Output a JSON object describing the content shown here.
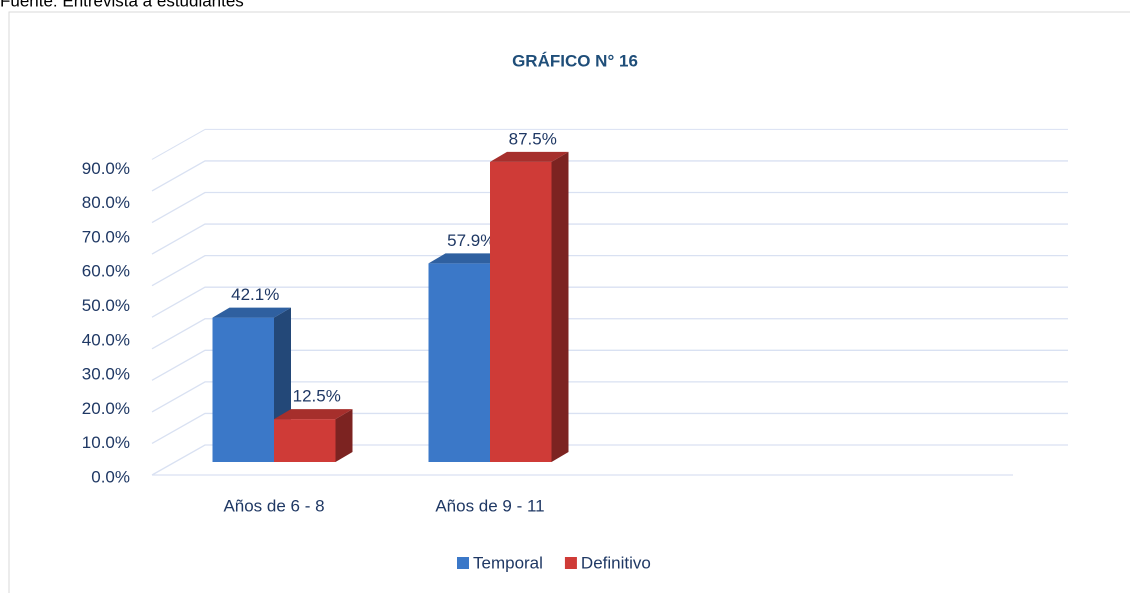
{
  "chart_data": {
    "type": "bar3d",
    "note": "Fuente: Entrevista a estudiantes",
    "title": "GRÁFICO N° 16",
    "categories": [
      "Años de 6 - 8",
      "Años de 9 - 11"
    ],
    "series": [
      {
        "name": "Temporal",
        "color": "#3b78c8",
        "values": [
          42.1,
          57.9
        ],
        "value_labels": [
          "42.1%",
          "57.9%"
        ]
      },
      {
        "name": "Definitivo",
        "color": "#cf3b37",
        "values": [
          12.5,
          87.5
        ],
        "value_labels": [
          "12.5%",
          "87.5%"
        ]
      }
    ],
    "ylim": [
      0,
      100
    ],
    "yticks": [
      {
        "value": 0,
        "label": "0.0%"
      },
      {
        "value": 10,
        "label": "10.0%"
      },
      {
        "value": 20,
        "label": "20.0%"
      },
      {
        "value": 30,
        "label": "30.0%"
      },
      {
        "value": 40,
        "label": "40.0%"
      },
      {
        "value": 50,
        "label": "50.0%"
      },
      {
        "value": 60,
        "label": "60.0%"
      },
      {
        "value": 70,
        "label": "70.0%"
      },
      {
        "value": 80,
        "label": "80.0%"
      },
      {
        "value": 90,
        "label": "90.0%"
      }
    ],
    "grid": true,
    "legend": "bottom"
  }
}
